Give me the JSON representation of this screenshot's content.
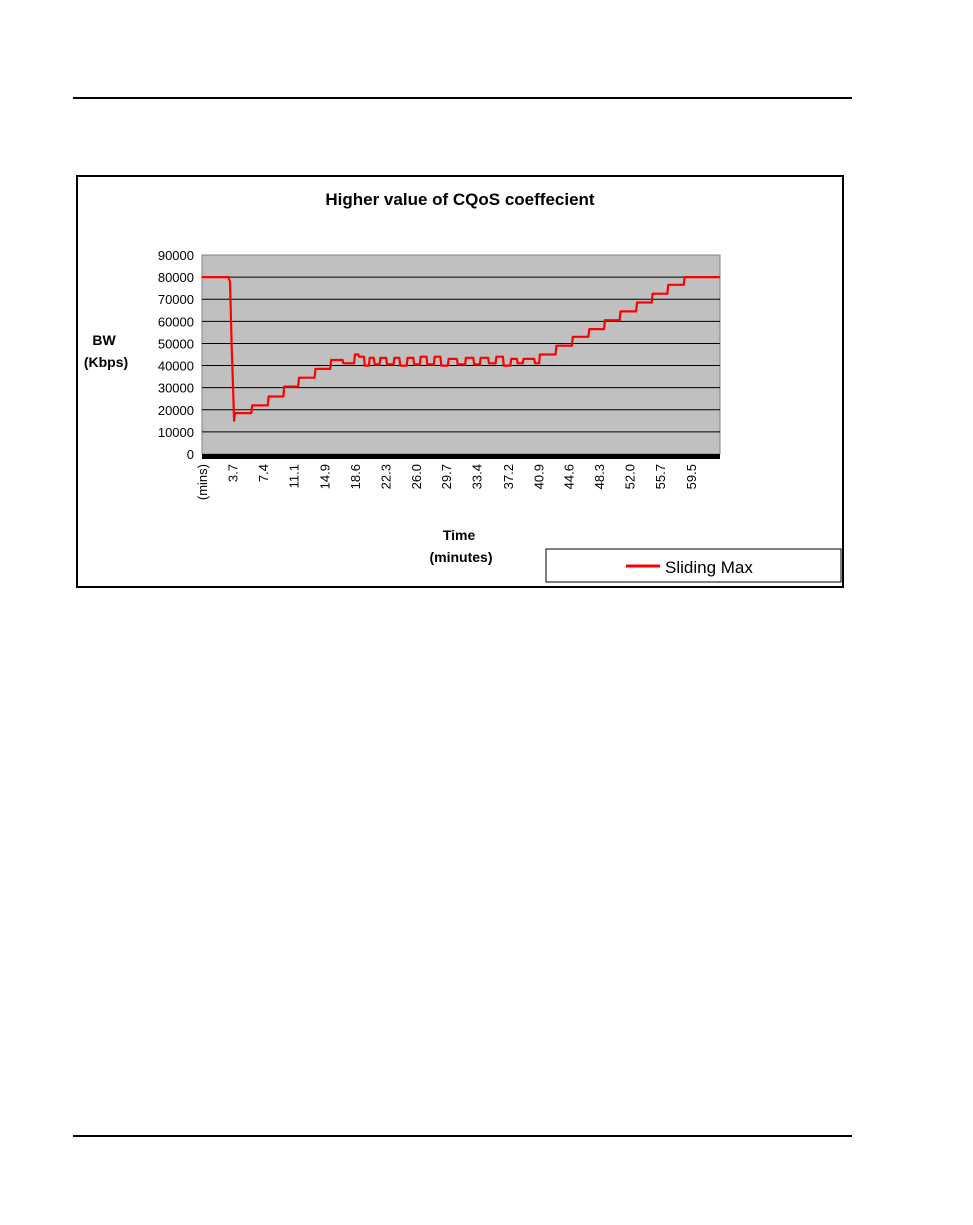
{
  "chart_data": {
    "type": "line",
    "title": "Higher value of CQoS coeffecient",
    "ylabel_lines": [
      "BW",
      "(Kbps)"
    ],
    "xlabel_lines": [
      "Time",
      "(minutes)"
    ],
    "ylim": [
      0,
      90000
    ],
    "yticks": [
      0,
      10000,
      20000,
      30000,
      40000,
      50000,
      60000,
      70000,
      80000,
      90000
    ],
    "yticklabels": [
      "0",
      "10000",
      "20000",
      "30000",
      "40000",
      "50000",
      "60000",
      "70000",
      "80000",
      "90000"
    ],
    "xlim": [
      0,
      63.0
    ],
    "xticks": [
      0,
      3.7,
      7.4,
      11.1,
      14.9,
      18.6,
      22.3,
      26.0,
      29.7,
      33.4,
      37.2,
      40.9,
      44.6,
      48.3,
      52.0,
      55.7,
      59.5
    ],
    "xticklabels": [
      "(mins)",
      "3.7",
      "7.4",
      "11.1",
      "14.9",
      "18.6",
      "22.3",
      "26.0",
      "29.7",
      "33.4",
      "37.2",
      "40.9",
      "44.6",
      "48.3",
      "52.0",
      "55.7",
      "59.5"
    ],
    "grid": true,
    "legend_position": "bottom-right",
    "plot_background": "#c0c0c0",
    "series": [
      {
        "name": "Sliding Max",
        "color": "#ff0000",
        "x": [
          0,
          3.2,
          3.4,
          3.6,
          3.8,
          3.9,
          4.0,
          4.1,
          6.0,
          6.1,
          8.0,
          8.1,
          9.9,
          10.0,
          11.7,
          11.8,
          13.7,
          13.8,
          15.6,
          15.7,
          17.1,
          17.2,
          18.5,
          18.6,
          19.0,
          19.1,
          19.7,
          19.8,
          20.3,
          20.4,
          20.9,
          21.0,
          21.6,
          21.7,
          22.4,
          22.5,
          23.3,
          23.4,
          24.0,
          24.1,
          24.9,
          25.0,
          25.7,
          25.8,
          26.5,
          26.6,
          27.3,
          27.4,
          28.2,
          28.3,
          29.0,
          29.1,
          29.9,
          30.0,
          31.0,
          31.1,
          32.0,
          32.1,
          33.0,
          33.1,
          33.8,
          33.9,
          34.8,
          34.9,
          35.7,
          35.8,
          36.6,
          36.7,
          37.5,
          37.6,
          38.3,
          38.4,
          39.0,
          39.1,
          40.4,
          40.5,
          41.0,
          41.1,
          43.0,
          43.1,
          45.0,
          45.1,
          47.0,
          47.1,
          48.9,
          49.0,
          50.8,
          50.9,
          52.8,
          52.9,
          54.7,
          54.8,
          56.6,
          56.7,
          58.6,
          58.7,
          60.5,
          60.6,
          63.0
        ],
        "y": [
          80000,
          80000,
          78000,
          50000,
          28000,
          15000,
          18000,
          18500,
          18500,
          22000,
          22000,
          26000,
          26000,
          30500,
          30500,
          34500,
          34500,
          38500,
          38500,
          42500,
          42500,
          41000,
          41000,
          45000,
          45000,
          44000,
          44000,
          40000,
          40000,
          43500,
          43500,
          40500,
          40500,
          43500,
          43500,
          40500,
          40500,
          43500,
          43500,
          40000,
          40000,
          43500,
          43500,
          40500,
          40500,
          44000,
          44000,
          40500,
          40500,
          44000,
          44000,
          40000,
          40000,
          43000,
          43000,
          40500,
          40500,
          43500,
          43500,
          40500,
          40500,
          43500,
          43500,
          41000,
          41000,
          44000,
          44000,
          40000,
          40000,
          43000,
          43000,
          41000,
          41000,
          43000,
          43000,
          41000,
          41000,
          45000,
          45000,
          49000,
          49000,
          53000,
          53000,
          56500,
          56500,
          60500,
          60500,
          64500,
          64500,
          68500,
          68500,
          72500,
          72500,
          76500,
          76500,
          80000,
          80000,
          80000,
          80000
        ]
      }
    ]
  }
}
